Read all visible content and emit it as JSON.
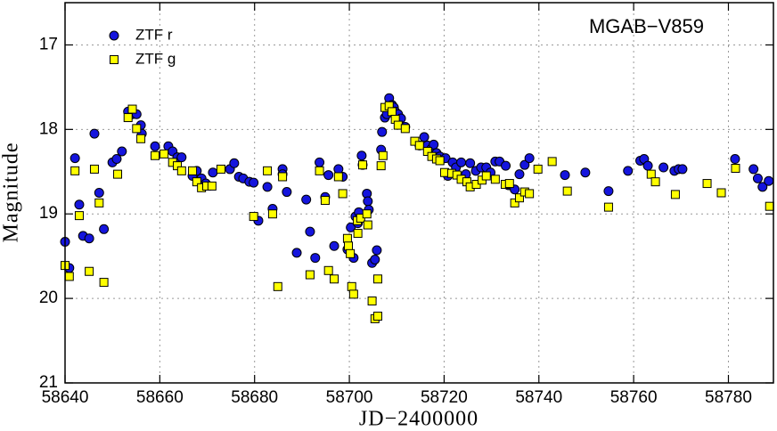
{
  "chart_data": {
    "type": "scatter",
    "annotation": "MGAB−V859",
    "xlabel": "JD−2400000",
    "ylabel": "Magnitude",
    "xlim": [
      58640,
      58789.5
    ],
    "ylim": [
      16.5,
      21
    ],
    "y_inverted": true,
    "xticks": [
      58640,
      58660,
      58680,
      58700,
      58720,
      58740,
      58760,
      58780
    ],
    "yticks": [
      17,
      18,
      19,
      20,
      21
    ],
    "grid": true,
    "legend": "upper left",
    "series": [
      {
        "name": "ZTF r",
        "color": "#1515dd",
        "marker": "circle",
        "x": [
          58640.0,
          58640.9,
          58642.1,
          58643.0,
          58643.8,
          58645.1,
          58646.2,
          58647.2,
          58648.2,
          58650.0,
          58650.9,
          58652.0,
          58653.3,
          58654.2,
          58655.1,
          58656.0,
          58656.2,
          58659.0,
          58661.8,
          58662.7,
          58663.7,
          58664.6,
          58666.9,
          58667.8,
          58668.8,
          58669.7,
          58671.2,
          58674.8,
          58675.7,
          58676.7,
          58677.6,
          58678.9,
          58679.8,
          58680.8,
          58682.7,
          58683.8,
          58685.9,
          58685.9,
          58686.8,
          58688.9,
          58690.9,
          58691.7,
          58692.8,
          58693.7,
          58694.9,
          58695.6,
          58696.8,
          58697.7,
          58698.6,
          58699.6,
          58700.3,
          58700.9,
          58701.3,
          58701.8,
          58702.0,
          58702.6,
          58702.8,
          58703.7,
          58703.9,
          58704.1,
          58704.8,
          58705.4,
          58705.8,
          58706.7,
          58706.9,
          58707.5,
          58707.9,
          58708.4,
          58709.0,
          58709.4,
          58709.7,
          58710.3,
          58710.9,
          58711.8,
          58714.8,
          58715.8,
          58716.5,
          58717.3,
          58717.8,
          58718.4,
          58719.1,
          58720.3,
          58720.8,
          58721.8,
          58722.5,
          58723.6,
          58724.6,
          58725.5,
          58726.7,
          58727.8,
          58728.9,
          58729.8,
          58730.8,
          58731.7,
          58733.0,
          58733.6,
          58734.9,
          58735.9,
          58737.0,
          58738.0,
          58745.5,
          58749.8,
          58754.7,
          58758.8,
          58761.4,
          58762.2,
          58763.0,
          58766.3,
          58768.6,
          58769.5,
          58770.3,
          58781.4,
          58785.3,
          58786.2,
          58787.2,
          58788.5
        ],
        "values": [
          19.33,
          19.64,
          18.34,
          18.89,
          19.26,
          19.29,
          18.05,
          18.75,
          19.18,
          18.39,
          18.35,
          18.26,
          17.79,
          17.82,
          17.82,
          17.95,
          18.05,
          18.2,
          18.2,
          18.26,
          18.33,
          18.33,
          18.55,
          18.49,
          18.58,
          18.64,
          18.51,
          18.47,
          18.4,
          18.56,
          18.58,
          18.62,
          18.63,
          19.08,
          18.68,
          18.94,
          18.47,
          18.53,
          18.74,
          19.46,
          18.83,
          19.21,
          19.52,
          18.39,
          18.8,
          18.54,
          19.38,
          18.47,
          18.56,
          19.42,
          19.16,
          19.52,
          19.03,
          19.11,
          18.98,
          18.31,
          18.42,
          18.76,
          18.85,
          18.95,
          19.58,
          19.54,
          19.43,
          18.24,
          18.03,
          17.86,
          17.82,
          17.63,
          17.71,
          17.74,
          17.79,
          17.82,
          17.87,
          17.97,
          18.19,
          18.09,
          18.19,
          18.23,
          18.18,
          18.28,
          18.32,
          18.34,
          18.55,
          18.39,
          18.45,
          18.39,
          18.53,
          18.4,
          18.49,
          18.45,
          18.45,
          18.51,
          18.38,
          18.38,
          18.43,
          18.66,
          18.71,
          18.53,
          18.42,
          18.34,
          18.54,
          18.51,
          18.73,
          18.49,
          18.37,
          18.35,
          18.43,
          18.45,
          18.49,
          18.47,
          18.47,
          18.35,
          18.47,
          18.58,
          18.68,
          18.61
        ]
      },
      {
        "name": "ZTF g",
        "color": "#ffff00",
        "marker": "square",
        "x": [
          58640.0,
          58640.9,
          58642.1,
          58643.0,
          58645.1,
          58646.2,
          58647.2,
          58648.2,
          58651.1,
          58653.3,
          58654.2,
          58655.1,
          58656.0,
          58659.0,
          58660.9,
          58662.7,
          58663.7,
          58664.6,
          58666.9,
          58667.8,
          58668.8,
          58669.9,
          58671.0,
          58672.9,
          58679.8,
          58682.7,
          58683.8,
          58684.9,
          58685.9,
          58691.7,
          58693.7,
          58694.9,
          58695.6,
          58696.8,
          58697.7,
          58698.6,
          58699.6,
          58699.8,
          58700.2,
          58700.5,
          58700.9,
          58701.7,
          58701.8,
          58702.4,
          58702.8,
          58703.7,
          58703.9,
          58704.8,
          58705.4,
          58706.0,
          58706.0,
          58706.7,
          58707.1,
          58707.5,
          58708.4,
          58709.0,
          58709.7,
          58710.3,
          58711.8,
          58713.8,
          58714.8,
          58716.5,
          58717.4,
          58718.4,
          58719.1,
          58720.1,
          58721.6,
          58722.7,
          58723.6,
          58724.8,
          58725.5,
          58726.8,
          58728.0,
          58728.9,
          58730.8,
          58732.9,
          58733.8,
          58734.9,
          58735.9,
          58737.0,
          58738.0,
          58739.8,
          58742.8,
          58746.0,
          58754.7,
          58763.7,
          58764.6,
          58768.8,
          58775.5,
          58778.5,
          58781.5,
          58788.7
        ],
        "values": [
          19.61,
          19.74,
          18.49,
          19.02,
          19.68,
          18.47,
          18.87,
          19.81,
          18.53,
          17.86,
          17.76,
          17.99,
          18.11,
          18.31,
          18.29,
          18.39,
          18.43,
          18.49,
          18.49,
          18.62,
          18.69,
          18.67,
          18.67,
          18.47,
          19.03,
          18.49,
          19.0,
          19.86,
          18.56,
          19.72,
          18.49,
          18.84,
          19.67,
          19.77,
          18.56,
          18.76,
          19.29,
          19.38,
          19.47,
          19.86,
          19.95,
          19.08,
          19.23,
          19.05,
          18.42,
          19.0,
          19.13,
          20.03,
          20.24,
          20.21,
          19.77,
          18.43,
          18.31,
          17.74,
          17.72,
          17.79,
          17.88,
          17.95,
          17.99,
          18.14,
          18.19,
          18.26,
          18.32,
          18.35,
          18.37,
          18.51,
          18.52,
          18.54,
          18.59,
          18.62,
          18.68,
          18.65,
          18.6,
          18.55,
          18.59,
          18.65,
          18.64,
          18.87,
          18.81,
          18.74,
          18.76,
          18.47,
          18.38,
          18.73,
          18.92,
          18.53,
          18.62,
          18.77,
          18.64,
          18.75,
          18.46,
          18.91
        ]
      }
    ]
  }
}
